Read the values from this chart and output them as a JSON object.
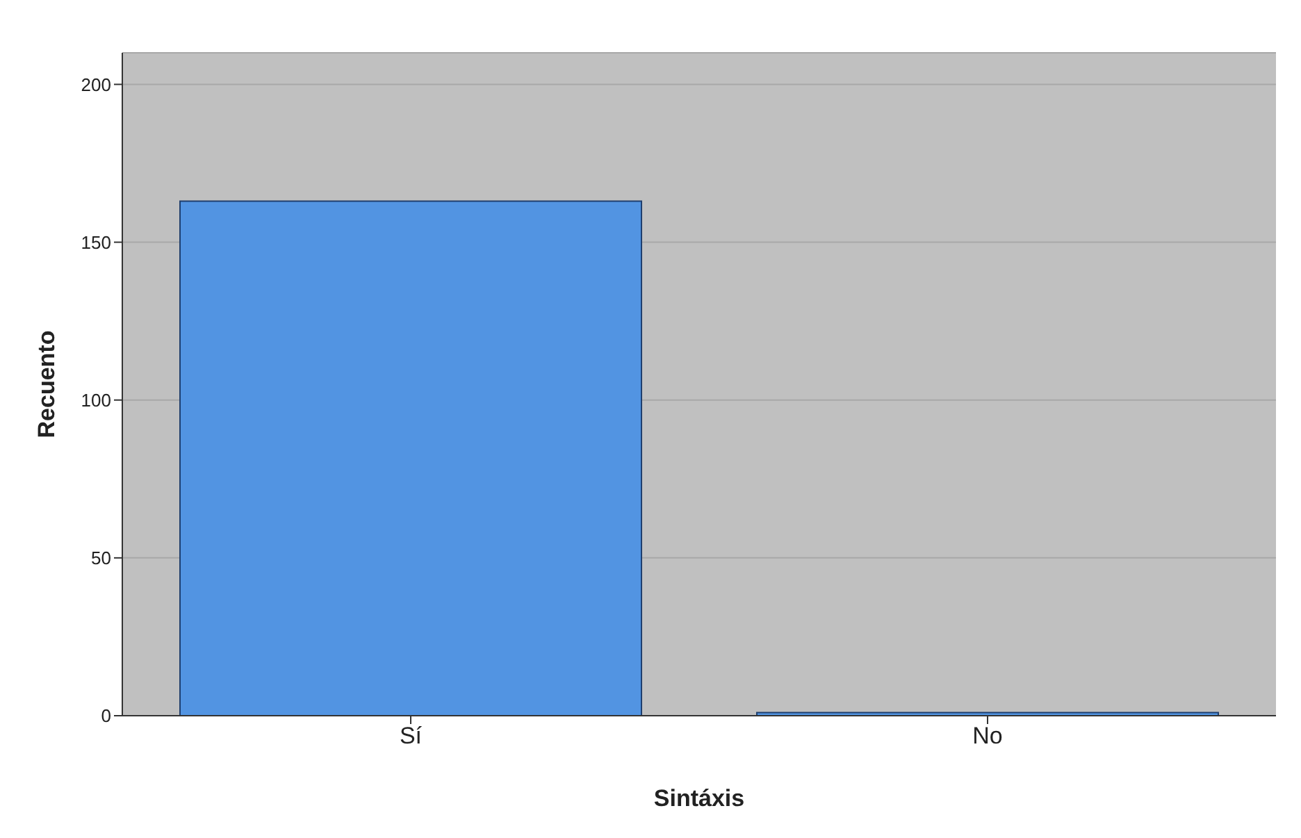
{
  "chart_data": {
    "type": "bar",
    "xlabel": "Sintáxis",
    "ylabel": "Recuento",
    "categories": [
      "Sí",
      "No"
    ],
    "values": [
      163,
      1
    ],
    "color": "#5294e2",
    "ylim": [
      0,
      210
    ],
    "yticks": [
      0,
      50,
      100,
      150,
      200
    ],
    "grid": "y"
  }
}
